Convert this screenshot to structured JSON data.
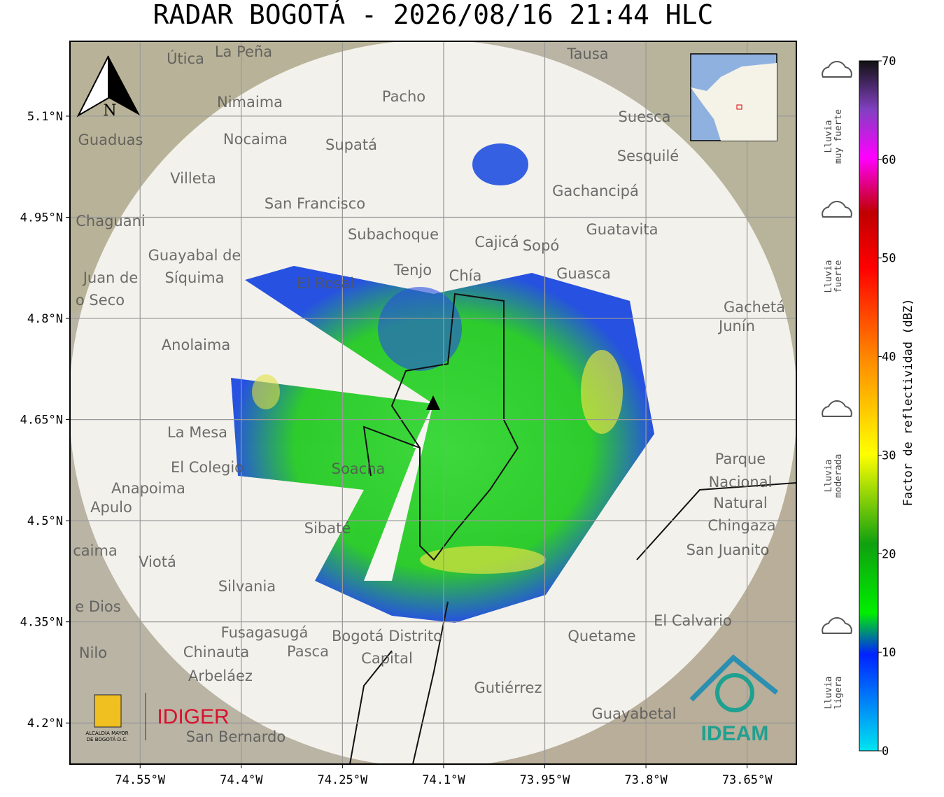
{
  "title": "RADAR BOGOTÁ - 2026/08/16 21:44 HLC",
  "map": {
    "xlim": [
      -74.654,
      -73.577
    ],
    "ylim": [
      4.139,
      5.211
    ],
    "xticks": [
      {
        "value": -74.55,
        "label": "74.55°W"
      },
      {
        "value": -74.4,
        "label": "74.4°W"
      },
      {
        "value": -74.25,
        "label": "74.25°W"
      },
      {
        "value": -74.1,
        "label": "74.1°W"
      },
      {
        "value": -73.95,
        "label": "73.95°W"
      },
      {
        "value": -73.8,
        "label": "73.8°W"
      },
      {
        "value": -73.65,
        "label": "73.65°W"
      }
    ],
    "yticks": [
      {
        "value": 5.1,
        "label": "5.1°N"
      },
      {
        "value": 4.95,
        "label": "4.95°N"
      },
      {
        "value": 4.8,
        "label": "4.8°N"
      },
      {
        "value": 4.65,
        "label": "4.65°N"
      },
      {
        "value": 4.5,
        "label": "4.5°N"
      },
      {
        "value": 4.35,
        "label": "4.35°N"
      },
      {
        "value": 4.2,
        "label": "4.2°N"
      }
    ],
    "grid": true,
    "north": "N",
    "places": [
      "Útica",
      "La Peña",
      "Tausa",
      "Pacho",
      "Nimaima",
      "Suesca",
      "Guaduas",
      "Nocaima",
      "Supatá",
      "Sesquilé",
      "Villeta",
      "Gachancipá",
      "San Francisco",
      "Chaguani",
      "Guatavita",
      "Subachoque",
      "Cajicá",
      "Sopó",
      "Guayabal de",
      "Síquima",
      "Tenjo",
      "Chía",
      "Guasca",
      "El Rosal",
      "Gachetá",
      "Junín",
      "Anolaima",
      "La Mesa",
      "Parque",
      "Soacha",
      "El Colegio",
      "Nacional",
      "Anapoima",
      "Natural",
      "Apulo",
      "Chingaza",
      "Sibaté",
      "San Juanito",
      "Viotá",
      "Silvania",
      "El Calvario",
      "Quetame",
      "Fusagasugá",
      "Bogotá Distrito",
      "Capital",
      "Chinauta",
      "Pasca",
      "Nilo",
      "Arbeláez",
      "Gutiérrez",
      "Guayabetal",
      "San Bernardo",
      "Juan de",
      "o Seco",
      "caima",
      "e Dios"
    ]
  },
  "logos": {
    "city": "ALCALDÍA MAYOR",
    "city2": "DE BOGOTÁ D.C.",
    "idiger": "IDIGER",
    "ideam": "IDEAM"
  },
  "colorbar": {
    "label": "Factor de reflectividad (dBZ)",
    "lim": [
      0,
      70
    ],
    "ticks": [
      0,
      10,
      20,
      30,
      40,
      50,
      60,
      70
    ],
    "categories": [
      [
        "Lluvia",
        "muy fuerte"
      ],
      [
        "Lluvia",
        "fuerte"
      ],
      [
        "Lluvia",
        "moderada"
      ],
      [
        "Lluvia",
        "ligera"
      ]
    ]
  }
}
